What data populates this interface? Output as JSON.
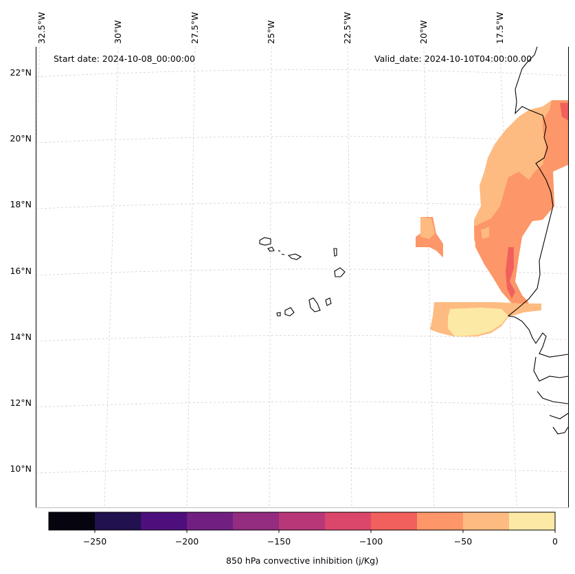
{
  "map": {
    "start_label": "Start date: 2024-10-08_00:00:00",
    "valid_label": "Valid_date: 2024-10-10T04:00:00.00",
    "lon_labels": [
      "32.5°W",
      "30°W",
      "27.5°W",
      "25°W",
      "22.5°W",
      "20°W",
      "17.5°W"
    ],
    "lat_labels": [
      "22°N",
      "20°N",
      "18°N",
      "16°N",
      "14°N",
      "12°N",
      "10°N"
    ]
  },
  "colorbar": {
    "title": "850 hPa convective inhibition (j/Kg)",
    "tick_labels": [
      "−250",
      "−200",
      "−150",
      "−100",
      "−50",
      "0"
    ],
    "colors": [
      "#05040f",
      "#21114e",
      "#4d0f7c",
      "#711f81",
      "#942c80",
      "#b73779",
      "#db476a",
      "#f1605d",
      "#fd9668",
      "#febb81",
      "#fde9a6"
    ]
  }
}
